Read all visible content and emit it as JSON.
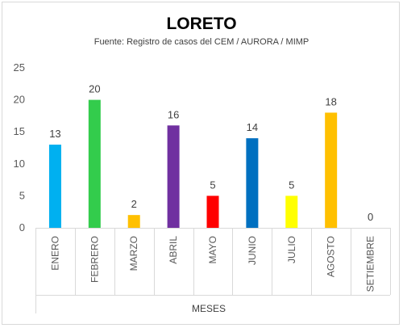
{
  "chart_data": {
    "type": "bar",
    "title": "LORETO",
    "subtitle": "Fuente: Registro de casos del CEM / AURORA / MIMP",
    "xlabel": "MESES",
    "ylabel": "",
    "ylim": [
      0,
      25
    ],
    "yticks": [
      "0",
      "5",
      "10",
      "15",
      "20",
      "25"
    ],
    "grid": false,
    "legend": "none",
    "categories": [
      "ENERO",
      "FEBRERO",
      "MARZO",
      "ABRIL",
      "MAYO",
      "JUNIO",
      "JULIO",
      "AGOSTO",
      "SETIEMBRE"
    ],
    "values": [
      13,
      20,
      2,
      16,
      5,
      14,
      5,
      18,
      0
    ],
    "data_labels": [
      "13",
      "20",
      "2",
      "16",
      "5",
      "14",
      "5",
      "18",
      "0"
    ],
    "colors": [
      "#00b0f0",
      "#33cc4c",
      "#ffc000",
      "#7030a0",
      "#ff0000",
      "#0070c0",
      "#ffff00",
      "#ffc000",
      "#a6a6a6"
    ]
  }
}
